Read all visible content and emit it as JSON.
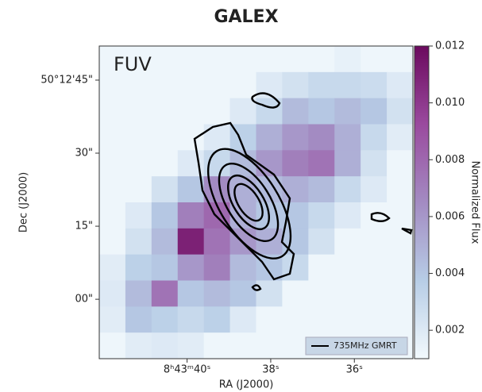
{
  "chart_data": {
    "type": "image",
    "title": "GALEX",
    "panel_label": "FUV",
    "x_label": "RA (J2000)",
    "y_label": "Dec (J2000)",
    "colorbar_label": "Normalized Flux",
    "xlim": [
      42.1,
      34.6
    ],
    "xticks": [
      {
        "value": 40,
        "label": "8ʰ43ᵐ40ˢ"
      },
      {
        "value": 38,
        "label": "38ˢ"
      },
      {
        "value": 36,
        "label": "36ˢ"
      }
    ],
    "ylim": [
      -12.2,
      52
    ],
    "yticks": [
      {
        "value": 45,
        "label": "50°12'45\""
      },
      {
        "value": 30,
        "label": "30\""
      },
      {
        "value": 15,
        "label": "15\""
      },
      {
        "value": 0,
        "label": "00\""
      }
    ],
    "clim": [
      0.001,
      0.012
    ],
    "cticks": [
      0.002,
      0.004,
      0.006,
      0.008,
      0.01,
      0.012
    ],
    "cticks_labels": [
      "0.002",
      "0.004",
      "0.006",
      "0.008",
      "0.010",
      "0.012"
    ],
    "contour_series": {
      "name": "735MHz GMRT",
      "color": "#000000"
    },
    "values": [
      [
        0.0012,
        0.0012,
        0.0012,
        0.0012,
        0.0012,
        0.0012,
        0.0012,
        0.0012,
        0.0012,
        0.0015,
        0.0012,
        0.0012
      ],
      [
        0.0012,
        0.0012,
        0.0012,
        0.0012,
        0.0012,
        0.0012,
        0.002,
        0.0025,
        0.003,
        0.003,
        0.0028,
        0.002
      ],
      [
        0.0012,
        0.0012,
        0.0012,
        0.0012,
        0.0012,
        0.002,
        0.003,
        0.0045,
        0.004,
        0.0045,
        0.004,
        0.0025
      ],
      [
        0.0012,
        0.0012,
        0.0012,
        0.0012,
        0.002,
        0.0035,
        0.005,
        0.006,
        0.0065,
        0.005,
        0.003,
        0.0018
      ],
      [
        0.0012,
        0.0012,
        0.0012,
        0.002,
        0.003,
        0.0045,
        0.006,
        0.007,
        0.0075,
        0.005,
        0.0025,
        0.0012
      ],
      [
        0.0012,
        0.0012,
        0.0025,
        0.004,
        0.0065,
        0.005,
        0.0045,
        0.005,
        0.0045,
        0.003,
        0.002,
        0.0012
      ],
      [
        0.0012,
        0.002,
        0.004,
        0.007,
        0.008,
        0.005,
        0.004,
        0.004,
        0.003,
        0.002,
        0.0012,
        0.0012
      ],
      [
        0.0012,
        0.0025,
        0.0045,
        0.011,
        0.0075,
        0.006,
        0.005,
        0.004,
        0.0025,
        0.0012,
        0.0012,
        0.0012
      ],
      [
        0.0018,
        0.0035,
        0.004,
        0.006,
        0.007,
        0.0045,
        0.004,
        0.003,
        0.0012,
        0.0012,
        0.0012,
        0.0012
      ],
      [
        0.002,
        0.0045,
        0.0075,
        0.004,
        0.0045,
        0.004,
        0.0025,
        0.0012,
        0.0012,
        0.0012,
        0.0012,
        0.0012
      ],
      [
        0.0018,
        0.004,
        0.0035,
        0.003,
        0.0035,
        0.002,
        0.0012,
        0.0012,
        0.0012,
        0.0012,
        0.0012,
        0.0012
      ],
      [
        0.0012,
        0.0018,
        0.002,
        0.0018,
        0.0012,
        0.0012,
        0.0012,
        0.0012,
        0.0012,
        0.0012,
        0.0012,
        0.0012
      ]
    ]
  }
}
